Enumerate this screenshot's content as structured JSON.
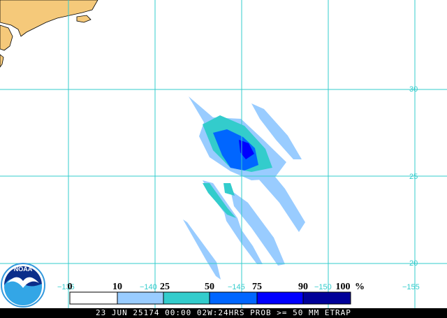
{
  "map": {
    "colors": {
      "land": "#f5c97a",
      "coast": "#000000",
      "grid": "#33cccc",
      "background": "#ffffff"
    },
    "lat_labels": [
      "30",
      "25",
      "20"
    ],
    "lon_labels": [
      "−135",
      "−140",
      "−145",
      "−150",
      "−155"
    ]
  },
  "legend": {
    "ticks": [
      "0",
      "10",
      "25",
      "50",
      "75",
      "90",
      "100"
    ],
    "unit": "%",
    "bins": [
      {
        "from": 0,
        "to": 10,
        "color": "#ffffff"
      },
      {
        "from": 10,
        "to": 25,
        "color": "#99ccff"
      },
      {
        "from": 25,
        "to": 50,
        "color": "#33cccc"
      },
      {
        "from": 50,
        "to": 75,
        "color": "#0066ff"
      },
      {
        "from": 75,
        "to": 90,
        "color": "#0000ff"
      },
      {
        "from": 90,
        "to": 100,
        "color": "#000099"
      }
    ]
  },
  "logo": {
    "text": "NOAA"
  },
  "footer": {
    "text": "23 JUN 25174 00:00 02W:24HRS PROB >= 50 MM ETRAP"
  }
}
